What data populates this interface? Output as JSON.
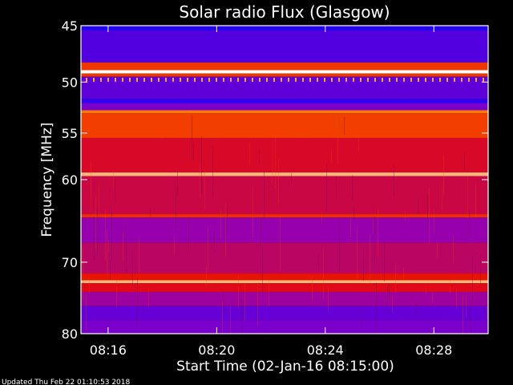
{
  "chart_data": {
    "type": "heatmap",
    "title": "Solar radio Flux (Glasgow)",
    "ylabel": "Frequency [MHz]",
    "xlabel": "Start Time (02-Jan-16 08:15:00)",
    "y_scale": "log",
    "ylim": [
      80,
      45
    ],
    "xlim": [
      "08:15:00",
      "08:30:00"
    ],
    "y_ticks": [
      {
        "value": 45,
        "label": "45"
      },
      {
        "value": 50,
        "label": "50"
      },
      {
        "value": 55,
        "label": "55"
      },
      {
        "value": 60,
        "label": "60"
      },
      {
        "value": 70,
        "label": "70"
      },
      {
        "value": 80,
        "label": "80"
      }
    ],
    "x_ticks": [
      {
        "value": "08:16",
        "label": "08:16"
      },
      {
        "value": "08:20",
        "label": "08:20"
      },
      {
        "value": "08:24",
        "label": "08:24"
      },
      {
        "value": "08:28",
        "label": "08:28"
      }
    ],
    "colors": {
      "low": "#0000ff",
      "mid": "#cc0000",
      "high": "#ffffff",
      "background": "#000000",
      "axes": "#ffffff"
    },
    "bands": [
      {
        "from_mhz": 45.0,
        "to_mhz": 45.4,
        "level": 0.05
      },
      {
        "from_mhz": 45.4,
        "to_mhz": 48.2,
        "level": 0.18
      },
      {
        "from_mhz": 48.2,
        "to_mhz": 48.9,
        "level": 0.7
      },
      {
        "from_mhz": 48.9,
        "to_mhz": 49.2,
        "level": 1.0
      },
      {
        "from_mhz": 49.2,
        "to_mhz": 49.5,
        "level": 0.7
      },
      {
        "from_mhz": 49.5,
        "to_mhz": 51.6,
        "level": 0.22
      },
      {
        "from_mhz": 51.6,
        "to_mhz": 52.0,
        "level": 0.08
      },
      {
        "from_mhz": 52.0,
        "to_mhz": 52.7,
        "level": 0.3
      },
      {
        "from_mhz": 52.7,
        "to_mhz": 53.0,
        "level": 0.85
      },
      {
        "from_mhz": 53.0,
        "to_mhz": 55.5,
        "level": 0.72
      },
      {
        "from_mhz": 55.5,
        "to_mhz": 59.2,
        "level": 0.56
      },
      {
        "from_mhz": 59.2,
        "to_mhz": 59.6,
        "level": 0.92
      },
      {
        "from_mhz": 59.6,
        "to_mhz": 64.0,
        "level": 0.52
      },
      {
        "from_mhz": 64.0,
        "to_mhz": 64.4,
        "level": 0.68
      },
      {
        "from_mhz": 64.4,
        "to_mhz": 67.5,
        "level": 0.38
      },
      {
        "from_mhz": 67.5,
        "to_mhz": 71.5,
        "level": 0.48
      },
      {
        "from_mhz": 71.5,
        "to_mhz": 72.4,
        "level": 0.62
      },
      {
        "from_mhz": 72.4,
        "to_mhz": 72.8,
        "level": 0.92
      },
      {
        "from_mhz": 72.8,
        "to_mhz": 74.0,
        "level": 0.58
      },
      {
        "from_mhz": 74.0,
        "to_mhz": 76.0,
        "level": 0.4
      },
      {
        "from_mhz": 76.0,
        "to_mhz": 78.0,
        "level": 0.24
      },
      {
        "from_mhz": 78.0,
        "to_mhz": 80.0,
        "level": 0.3
      }
    ],
    "grid": false
  },
  "footer": {
    "updated": "Updated Thu Feb 22 01:10:53 2018"
  }
}
